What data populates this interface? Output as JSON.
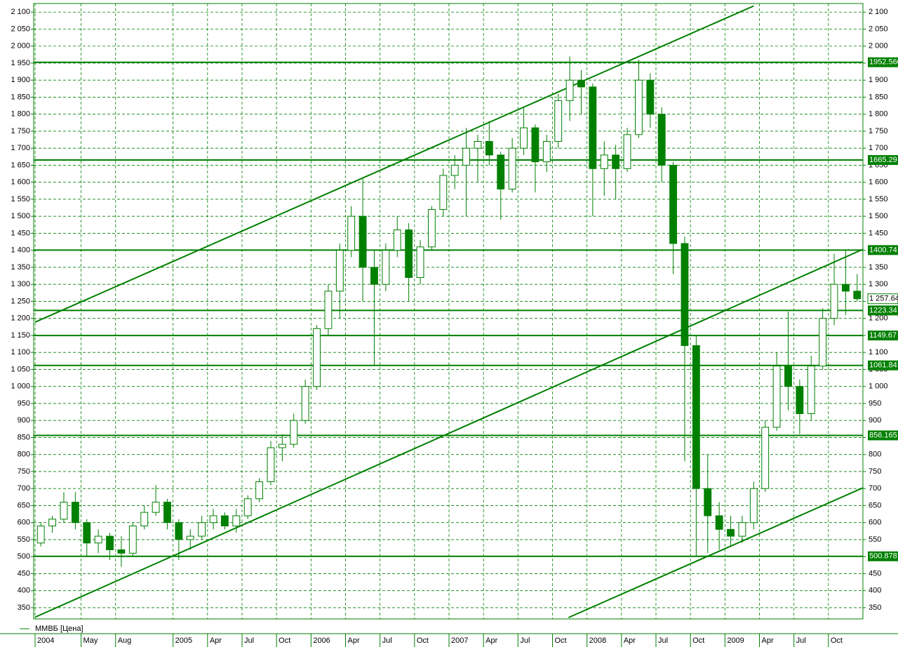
{
  "chart_data": {
    "type": "candlestick",
    "series": [
      {
        "name": "ММВБ [Цена]",
        "color": "#008000",
        "open": [
          540,
          590,
          610,
          660,
          600,
          540,
          560,
          520,
          510,
          590,
          630,
          660,
          600,
          550,
          560,
          600,
          620,
          590,
          620,
          670,
          720,
          820,
          830,
          900,
          1000,
          1170,
          1280,
          1400,
          1500,
          1350,
          1300,
          1400,
          1460,
          1320,
          1410,
          1520,
          1620,
          1650,
          1700,
          1720,
          1680,
          1580,
          1700,
          1760,
          1660,
          1720,
          1840,
          1900,
          1880,
          1640,
          1680,
          1640,
          1740,
          1900,
          1800,
          1650,
          1420,
          1120,
          700,
          620,
          580,
          560,
          600,
          700,
          880,
          1060,
          1000,
          920,
          1060,
          1200,
          1300,
          1280
        ],
        "high": [
          600,
          620,
          690,
          690,
          610,
          580,
          570,
          560,
          600,
          650,
          710,
          670,
          610,
          580,
          620,
          640,
          630,
          640,
          680,
          730,
          840,
          860,
          920,
          1020,
          1180,
          1300,
          1420,
          1530,
          1610,
          1400,
          1420,
          1500,
          1480,
          1430,
          1530,
          1640,
          1680,
          1760,
          1740,
          1780,
          1690,
          1730,
          1820,
          1770,
          1740,
          1860,
          1970,
          1930,
          1890,
          1720,
          1710,
          1760,
          1960,
          1920,
          1820,
          1660,
          1440,
          1150,
          800,
          660,
          620,
          620,
          720,
          900,
          1100,
          1220,
          1020,
          1090,
          1230,
          1390,
          1400,
          1330
        ],
        "low": [
          530,
          570,
          600,
          580,
          500,
          510,
          490,
          470,
          500,
          580,
          620,
          580,
          490,
          520,
          550,
          580,
          580,
          570,
          610,
          660,
          710,
          780,
          820,
          890,
          990,
          1150,
          1200,
          1380,
          1250,
          1060,
          1280,
          1380,
          1250,
          1300,
          1400,
          1500,
          1580,
          1500,
          1600,
          1650,
          1490,
          1570,
          1680,
          1570,
          1630,
          1700,
          1780,
          1800,
          1500,
          1560,
          1550,
          1630,
          1730,
          1760,
          1600,
          1330,
          780,
          500,
          510,
          520,
          530,
          540,
          580,
          690,
          870,
          930,
          860,
          900,
          1050,
          1180,
          1210,
          1250
        ],
        "close": [
          590,
          610,
          660,
          600,
          540,
          560,
          520,
          510,
          590,
          630,
          660,
          600,
          550,
          560,
          600,
          620,
          590,
          620,
          670,
          720,
          820,
          830,
          900,
          1000,
          1170,
          1280,
          1400,
          1500,
          1350,
          1300,
          1400,
          1460,
          1320,
          1410,
          1520,
          1620,
          1650,
          1700,
          1720,
          1680,
          1580,
          1700,
          1760,
          1660,
          1720,
          1840,
          1900,
          1880,
          1640,
          1680,
          1640,
          1740,
          1900,
          1800,
          1650,
          1420,
          1120,
          700,
          620,
          580,
          560,
          600,
          700,
          880,
          1060,
          1000,
          920,
          1060,
          1200,
          1300,
          1280,
          1257.64
        ]
      }
    ],
    "categories": [
      "2004",
      null,
      null,
      null,
      "May",
      null,
      null,
      "Aug",
      null,
      null,
      null,
      null,
      "2005",
      null,
      null,
      "Apr",
      null,
      null,
      "Jul",
      null,
      null,
      "Oct",
      null,
      null,
      "2006",
      null,
      null,
      "Apr",
      null,
      null,
      "Jul",
      null,
      null,
      "Oct",
      null,
      null,
      "2007",
      null,
      null,
      "Apr",
      null,
      null,
      "Jul",
      null,
      null,
      "Oct",
      null,
      null,
      "2008",
      null,
      null,
      "Apr",
      null,
      null,
      "Jul",
      null,
      null,
      "Oct",
      null,
      null,
      "2009",
      null,
      null,
      "Apr",
      null,
      null,
      "Jul",
      null,
      null,
      "Oct",
      null,
      null
    ],
    "ylim": [
      321,
      2119
    ],
    "yticks": [
      350,
      400,
      450,
      500,
      550,
      600,
      650,
      700,
      750,
      800,
      850,
      900,
      950,
      {
        "value": 1000,
        "label": "1 000"
      },
      {
        "value": 1050,
        "label": "1 050"
      },
      {
        "value": 1100,
        "label": "1 100"
      },
      {
        "value": 1150,
        "label": "1 150"
      },
      {
        "value": 1200,
        "label": "1 200"
      },
      {
        "value": 1250,
        "label": "1 250"
      },
      {
        "value": 1300,
        "label": "1 300"
      },
      {
        "value": 1350,
        "label": "1 350"
      },
      {
        "value": 1400,
        "label": "1 400"
      },
      {
        "value": 1450,
        "label": "1 450"
      },
      {
        "value": 1500,
        "label": "1 500"
      },
      {
        "value": 1550,
        "label": "1 550"
      },
      {
        "value": 1600,
        "label": "1 600"
      },
      {
        "value": 1650,
        "label": "1 650"
      },
      {
        "value": 1700,
        "label": "1 700"
      },
      {
        "value": 1750,
        "label": "1 750"
      },
      {
        "value": 1800,
        "label": "1 800"
      },
      {
        "value": 1850,
        "label": "1 850"
      },
      {
        "value": 1900,
        "label": "1 900"
      },
      {
        "value": 1950,
        "label": "1 950"
      },
      {
        "value": 2000,
        "label": "2 000"
      },
      {
        "value": 2050,
        "label": "2 050"
      },
      {
        "value": 2100,
        "label": "2 100"
      }
    ],
    "levels": [
      {
        "value": 1952.56,
        "label": "1952.560"
      },
      {
        "value": 1665.29,
        "label": "1665.29"
      },
      {
        "value": 1400.74,
        "label": "1400.74"
      },
      {
        "value": 1223.34,
        "label": "1223.34"
      },
      {
        "value": 1149.67,
        "label": "1149.67"
      },
      {
        "value": 1061.84,
        "label": "1061.84"
      },
      {
        "value": 856.165,
        "label": "856.165"
      },
      {
        "value": 500.878,
        "label": "500.878"
      }
    ],
    "last_price": {
      "value": 1257.64,
      "label": "1 257.64"
    },
    "trend_lines": [
      {
        "x": [
          0,
          62.5
        ],
        "y": [
          1189,
          2118
        ]
      },
      {
        "x": [
          0,
          72
        ],
        "y": [
          322,
          1403
        ]
      },
      {
        "x": [
          46.4,
          72
        ],
        "y": [
          321,
          702
        ]
      }
    ],
    "grid": true
  }
}
